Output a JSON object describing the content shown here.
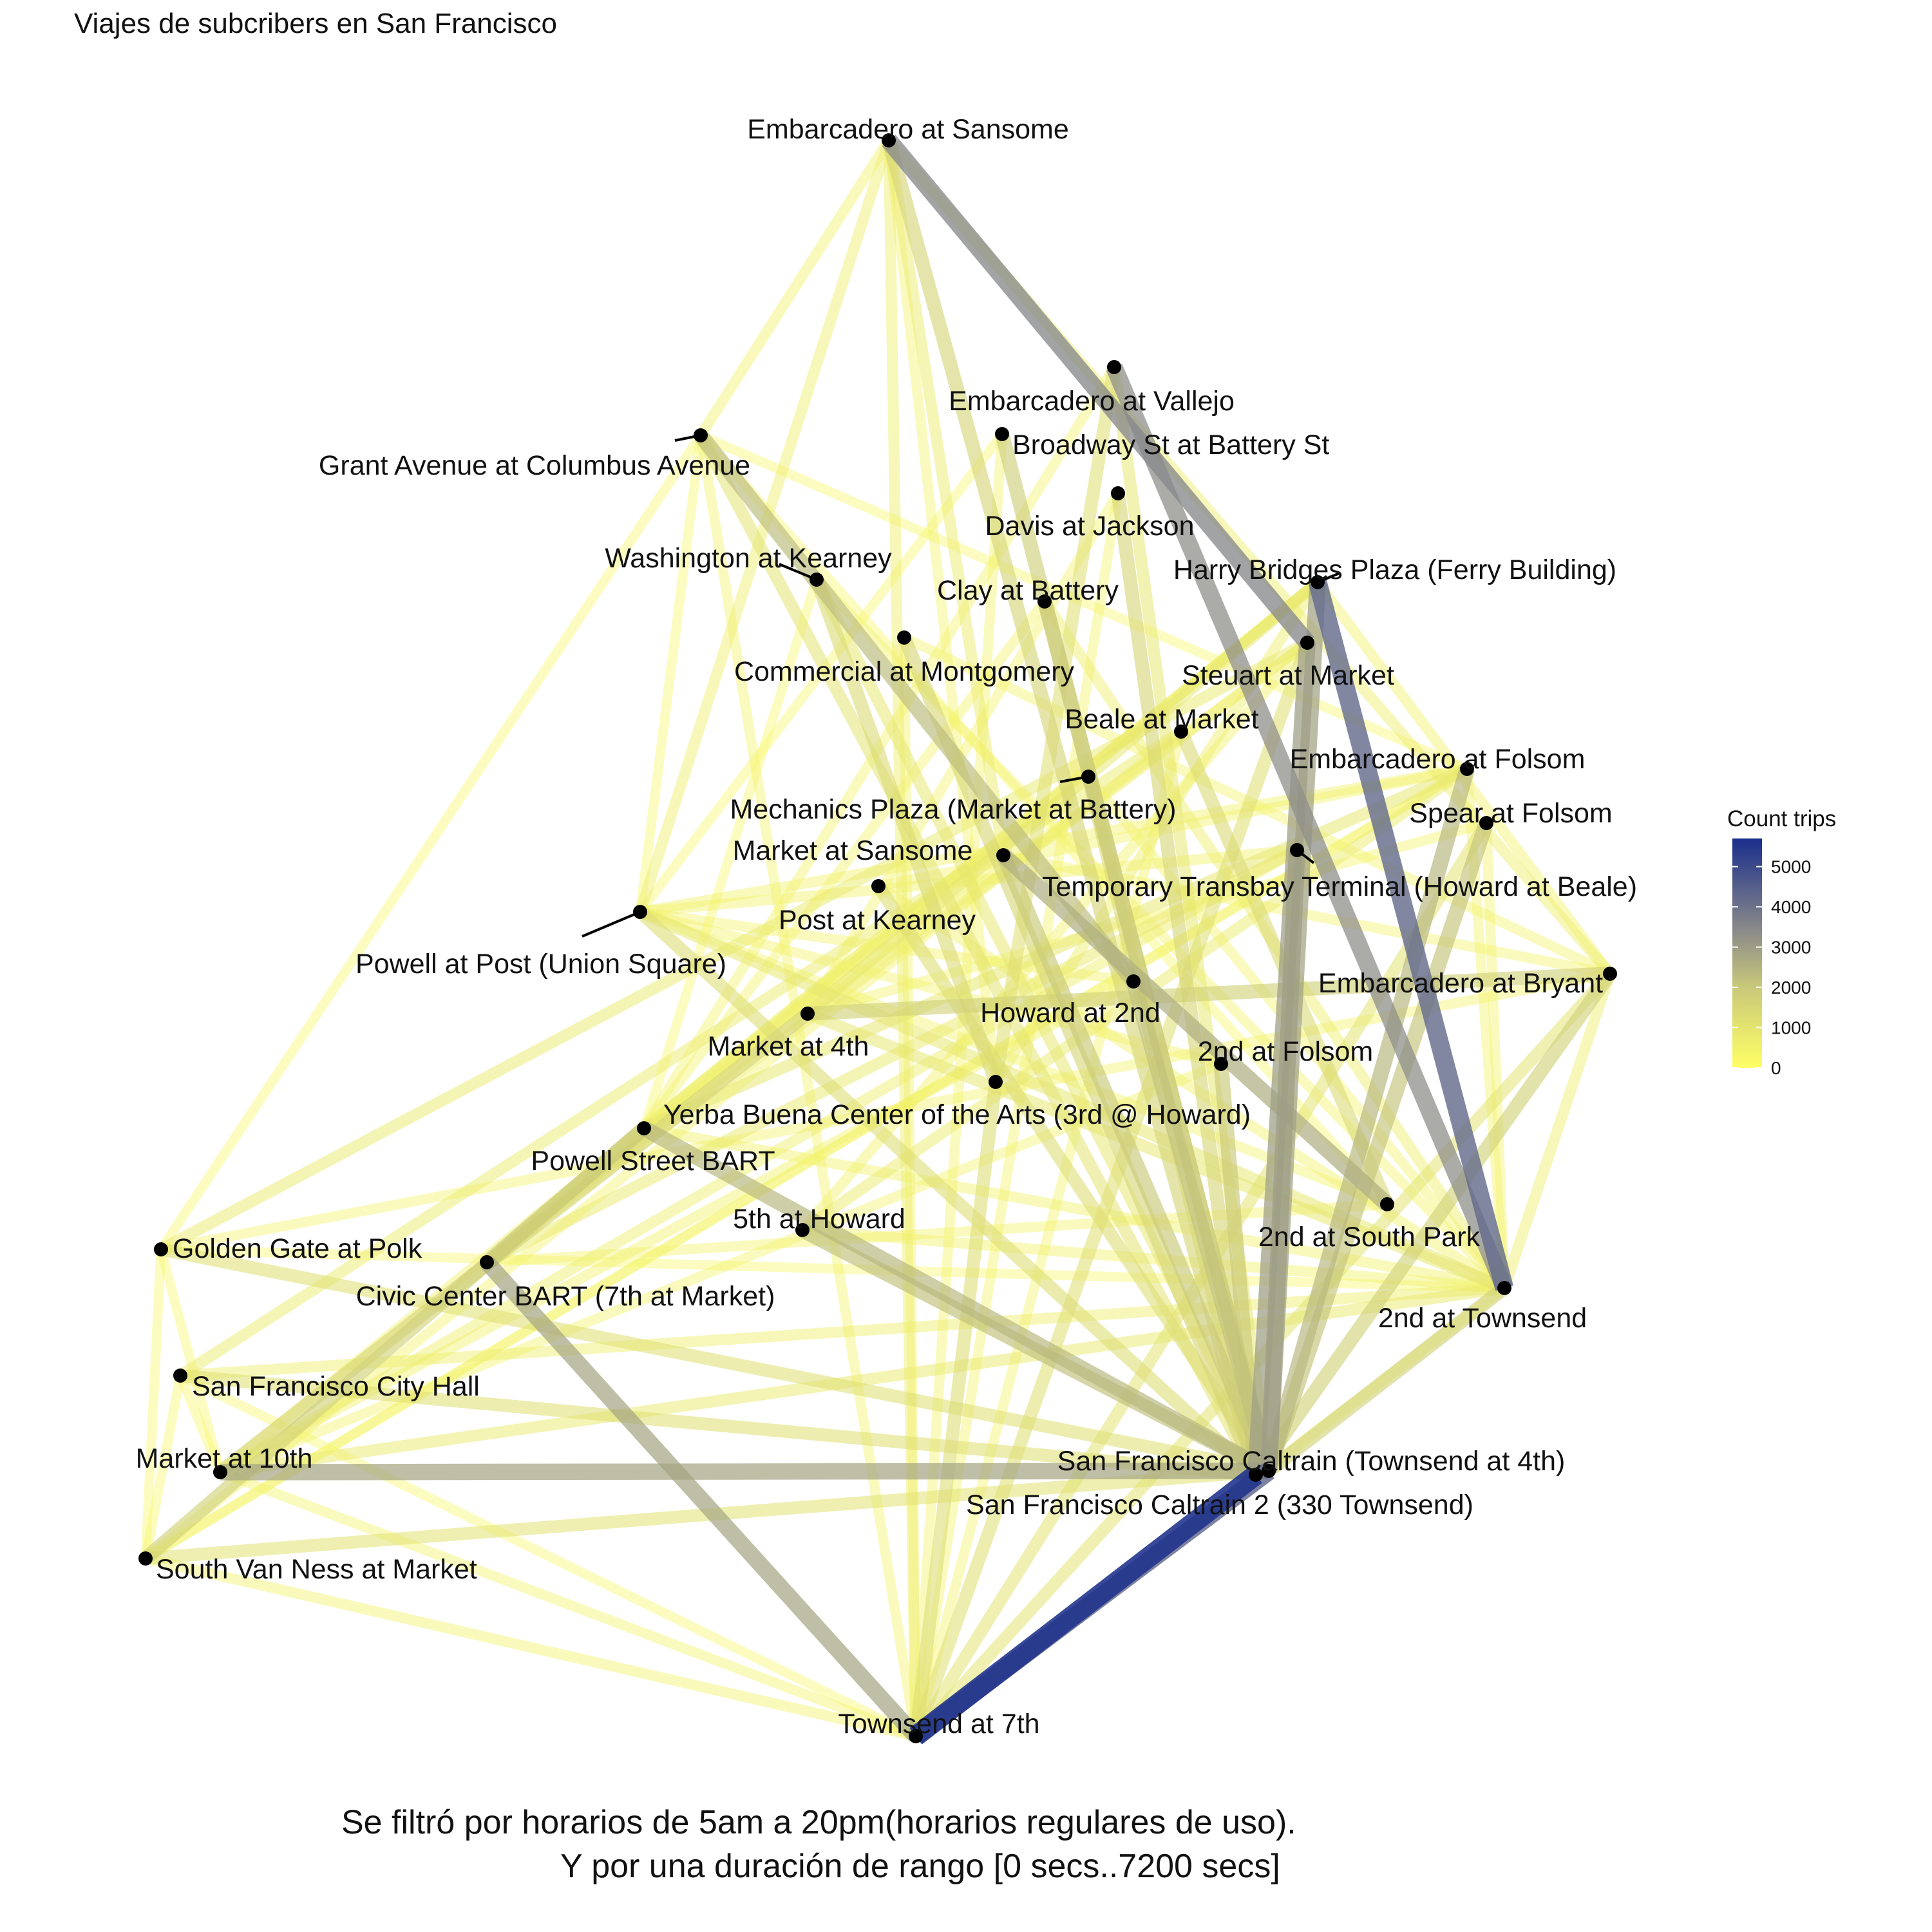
{
  "title": "Viajes de subcribers en San Francisco",
  "caption": {
    "line1": "Se filtró por horarios de 5am a 20pm(horarios regulares de uso).",
    "line2": "Y por una duración de rango [0 secs..7200 secs]"
  },
  "legend": {
    "title": "Count trips",
    "ticks": [
      "5000",
      "4000",
      "3000",
      "2000",
      "1000",
      "0"
    ],
    "tick_values": [
      5000,
      4000,
      3000,
      2000,
      1000,
      0
    ],
    "max": 5700,
    "colors": {
      "low": "#ffff66",
      "mid": "#8a8a8a",
      "high": "#1a2e8c"
    }
  },
  "nodes": [
    {
      "id": "embarcadero-sansome",
      "label": "Embarcadero at Sansome"
    },
    {
      "id": "embarcadero-vallejo",
      "label": "Embarcadero at Vallejo"
    },
    {
      "id": "broadway-battery",
      "label": "Broadway St at Battery St"
    },
    {
      "id": "grant-columbus",
      "label": "Grant Avenue at Columbus Avenue"
    },
    {
      "id": "davis-jackson",
      "label": "Davis at Jackson"
    },
    {
      "id": "washington-kearney",
      "label": "Washington at Kearney"
    },
    {
      "id": "clay-battery",
      "label": "Clay at Battery"
    },
    {
      "id": "harry-bridges",
      "label": "Harry Bridges Plaza (Ferry Building)"
    },
    {
      "id": "commercial-montgomery",
      "label": "Commercial at Montgomery"
    },
    {
      "id": "steuart-market",
      "label": "Steuart at Market"
    },
    {
      "id": "beale-market",
      "label": "Beale at Market"
    },
    {
      "id": "embarcadero-folsom",
      "label": "Embarcadero at Folsom"
    },
    {
      "id": "mechanics-plaza",
      "label": "Mechanics Plaza (Market at Battery)"
    },
    {
      "id": "spear-folsom",
      "label": "Spear at Folsom"
    },
    {
      "id": "market-sansome",
      "label": "Market at Sansome"
    },
    {
      "id": "temporary-transbay",
      "label": "Temporary Transbay Terminal (Howard at Beale)"
    },
    {
      "id": "post-kearney",
      "label": "Post at Kearney"
    },
    {
      "id": "powell-post",
      "label": "Powell at Post (Union Square)"
    },
    {
      "id": "embarcadero-bryant",
      "label": "Embarcadero at Bryant"
    },
    {
      "id": "howard-2nd",
      "label": "Howard at 2nd"
    },
    {
      "id": "market-4th",
      "label": "Market at 4th"
    },
    {
      "id": "2nd-folsom",
      "label": "2nd at Folsom"
    },
    {
      "id": "yerba-buena",
      "label": "Yerba Buena Center of the Arts (3rd @ Howard)"
    },
    {
      "id": "powell-bart",
      "label": "Powell Street BART"
    },
    {
      "id": "5th-howard",
      "label": "5th at Howard"
    },
    {
      "id": "2nd-south-park",
      "label": "2nd at South Park"
    },
    {
      "id": "golden-gate-polk",
      "label": "Golden Gate at Polk"
    },
    {
      "id": "civic-center-bart",
      "label": "Civic Center BART (7th at Market)"
    },
    {
      "id": "2nd-townsend",
      "label": "2nd at Townsend"
    },
    {
      "id": "sf-city-hall",
      "label": "San Francisco City Hall"
    },
    {
      "id": "caltrain-townsend-4th",
      "label": "San Francisco Caltrain (Townsend at 4th)"
    },
    {
      "id": "market-10th",
      "label": "Market at 10th"
    },
    {
      "id": "caltrain-2",
      "label": "San Francisco Caltrain 2 (330 Townsend)"
    },
    {
      "id": "south-van-ness",
      "label": "South Van Ness at Market"
    },
    {
      "id": "townsend-7th",
      "label": "Townsend at 7th"
    }
  ],
  "edges": [
    {
      "from": "caltrain-2",
      "to": "townsend-7th",
      "trips": 5600
    },
    {
      "from": "caltrain-townsend-4th",
      "to": "townsend-7th",
      "trips": 4300
    },
    {
      "from": "harry-bridges",
      "to": "2nd-townsend",
      "trips": 4200
    },
    {
      "from": "embarcadero-sansome",
      "to": "steuart-market",
      "trips": 3500
    },
    {
      "from": "embarcadero-vallejo",
      "to": "2nd-townsend",
      "trips": 3300
    },
    {
      "from": "temporary-transbay",
      "to": "caltrain-townsend-4th",
      "trips": 3000
    },
    {
      "from": "steuart-market",
      "to": "caltrain-2",
      "trips": 3000
    },
    {
      "from": "harry-bridges",
      "to": "caltrain-townsend-4th",
      "trips": 2900
    },
    {
      "from": "market-10th",
      "to": "caltrain-townsend-4th",
      "trips": 2800
    },
    {
      "from": "civic-center-bart",
      "to": "townsend-7th",
      "trips": 2800
    },
    {
      "from": "market-sansome",
      "to": "2nd-south-park",
      "trips": 2600
    },
    {
      "from": "embarcadero-folsom",
      "to": "caltrain-townsend-4th",
      "trips": 2400
    },
    {
      "from": "powell-bart",
      "to": "caltrain-townsend-4th",
      "trips": 2400
    },
    {
      "from": "grant-columbus",
      "to": "howard-2nd",
      "trips": 2300
    },
    {
      "from": "5th-howard",
      "to": "caltrain-townsend-4th",
      "trips": 2200
    },
    {
      "from": "howard-2nd",
      "to": "caltrain-townsend-4th",
      "trips": 2200
    },
    {
      "from": "spear-folsom",
      "to": "caltrain-townsend-4th",
      "trips": 2100
    },
    {
      "from": "2nd-folsom",
      "to": "caltrain-2",
      "trips": 2000
    },
    {
      "from": "market-sansome",
      "to": "caltrain-townsend-4th",
      "trips": 2000
    },
    {
      "from": "clay-battery",
      "to": "caltrain-townsend-4th",
      "trips": 1900
    },
    {
      "from": "civic-center-bart",
      "to": "powell-bart",
      "trips": 1900
    },
    {
      "from": "broadway-battery",
      "to": "caltrain-townsend-4th",
      "trips": 1800
    },
    {
      "from": "embarcadero-bryant",
      "to": "caltrain-2",
      "trips": 1700
    },
    {
      "from": "market-4th",
      "to": "embarcadero-bryant",
      "trips": 1700
    },
    {
      "from": "south-van-ness",
      "to": "powell-bart",
      "trips": 1700
    },
    {
      "from": "2nd-townsend",
      "to": "caltrain-townsend-4th",
      "trips": 1700
    },
    {
      "from": "market-10th",
      "to": "market-4th",
      "trips": 1600
    },
    {
      "from": "embarcadero-sansome",
      "to": "caltrain-2",
      "trips": 1600
    },
    {
      "from": "davis-jackson",
      "to": "caltrain-2",
      "trips": 1500
    },
    {
      "from": "commercial-montgomery",
      "to": "caltrain-2",
      "trips": 1500
    },
    {
      "from": "washington-kearney",
      "to": "yerba-buena",
      "trips": 1400
    },
    {
      "from": "beale-market",
      "to": "2nd-south-park",
      "trips": 1400
    },
    {
      "from": "mechanics-plaza",
      "to": "caltrain-2",
      "trips": 1400
    },
    {
      "from": "post-kearney",
      "to": "caltrain-townsend-4th",
      "trips": 1300
    },
    {
      "from": "yerba-buena",
      "to": "townsend-7th",
      "trips": 1300
    },
    {
      "from": "powell-post",
      "to": "caltrain-2",
      "trips": 1300
    },
    {
      "from": "golden-gate-polk",
      "to": "caltrain-townsend-4th",
      "trips": 1200
    },
    {
      "from": "sf-city-hall",
      "to": "caltrain-2",
      "trips": 1200
    },
    {
      "from": "embarcadero-vallejo",
      "to": "yerba-buena",
      "trips": 1200
    },
    {
      "from": "steuart-market",
      "to": "townsend-7th",
      "trips": 1200
    },
    {
      "from": "south-van-ness",
      "to": "caltrain-townsend-4th",
      "trips": 1100
    },
    {
      "from": "spear-folsom",
      "to": "townsend-7th",
      "trips": 1000
    },
    {
      "from": "embarcadero-bryant",
      "to": "townsend-7th",
      "trips": 1000
    },
    {
      "from": "grant-columbus",
      "to": "caltrain-2",
      "trips": 1000
    },
    {
      "from": "powell-post",
      "to": "2nd-townsend",
      "trips": 900
    },
    {
      "from": "market-4th",
      "to": "2nd-townsend",
      "trips": 900
    },
    {
      "from": "harry-bridges",
      "to": "market-4th",
      "trips": 900
    },
    {
      "from": "embarcadero-folsom",
      "to": "powell-bart",
      "trips": 900
    },
    {
      "from": "market-10th",
      "to": "2nd-townsend",
      "trips": 800
    },
    {
      "from": "golden-gate-polk",
      "to": "steuart-market",
      "trips": 800
    },
    {
      "from": "civic-center-bart",
      "to": "temporary-transbay",
      "trips": 800
    },
    {
      "from": "sf-city-hall",
      "to": "beale-market",
      "trips": 700
    },
    {
      "from": "5th-howard",
      "to": "embarcadero-folsom",
      "trips": 700
    },
    {
      "from": "embarcadero-sansome",
      "to": "market-sansome",
      "trips": 700
    },
    {
      "from": "embarcadero-sansome",
      "to": "powell-post",
      "trips": 600
    },
    {
      "from": "embarcadero-sansome",
      "to": "townsend-7th",
      "trips": 600
    },
    {
      "from": "embarcadero-sansome",
      "to": "embarcadero-bryant",
      "trips": 600
    },
    {
      "from": "embarcadero-sansome",
      "to": "grant-columbus",
      "trips": 500
    },
    {
      "from": "grant-columbus",
      "to": "golden-gate-polk",
      "trips": 300
    },
    {
      "from": "golden-gate-polk",
      "to": "south-van-ness",
      "trips": 300
    },
    {
      "from": "south-van-ness",
      "to": "townsend-7th",
      "trips": 500
    },
    {
      "from": "townsend-7th",
      "to": "2nd-townsend",
      "trips": 500
    },
    {
      "from": "embarcadero-bryant",
      "to": "2nd-townsend",
      "trips": 600
    },
    {
      "from": "embarcadero-bryant",
      "to": "harry-bridges",
      "trips": 500
    },
    {
      "from": "sf-city-hall",
      "to": "2nd-townsend",
      "trips": 600
    },
    {
      "from": "golden-gate-polk",
      "to": "embarcadero-bryant",
      "trips": 400
    },
    {
      "from": "market-10th",
      "to": "harry-bridges",
      "trips": 500
    },
    {
      "from": "south-van-ness",
      "to": "embarcadero-folsom",
      "trips": 400
    },
    {
      "from": "powell-post",
      "to": "embarcadero-folsom",
      "trips": 500
    },
    {
      "from": "post-kearney",
      "to": "2nd-townsend",
      "trips": 500
    },
    {
      "from": "washington-kearney",
      "to": "2nd-townsend",
      "trips": 400
    },
    {
      "from": "commercial-montgomery",
      "to": "embarcadero-bryant",
      "trips": 400
    },
    {
      "from": "clay-battery",
      "to": "2nd-townsend",
      "trips": 600
    },
    {
      "from": "broadway-battery",
      "to": "townsend-7th",
      "trips": 400
    },
    {
      "from": "davis-jackson",
      "to": "townsend-7th",
      "trips": 400
    },
    {
      "from": "grant-columbus",
      "to": "townsend-7th",
      "trips": 400
    },
    {
      "from": "powell-bart",
      "to": "2nd-townsend",
      "trips": 500
    },
    {
      "from": "5th-howard",
      "to": "2nd-townsend",
      "trips": 500
    },
    {
      "from": "yerba-buena",
      "to": "harry-bridges",
      "trips": 600
    },
    {
      "from": "2nd-folsom",
      "to": "powell-post",
      "trips": 400
    },
    {
      "from": "howard-2nd",
      "to": "market-10th",
      "trips": 500
    },
    {
      "from": "temporary-transbay",
      "to": "market-10th",
      "trips": 600
    },
    {
      "from": "beale-market",
      "to": "south-van-ness",
      "trips": 400
    },
    {
      "from": "mechanics-plaza",
      "to": "powell-bart",
      "trips": 500
    },
    {
      "from": "market-sansome",
      "to": "civic-center-bart",
      "trips": 500
    },
    {
      "from": "steuart-market",
      "to": "civic-center-bart",
      "trips": 600
    },
    {
      "from": "embarcadero-vallejo",
      "to": "caltrain-townsend-4th",
      "trips": 900
    },
    {
      "from": "2nd-south-park",
      "to": "powell-post",
      "trips": 400
    },
    {
      "from": "2nd-south-park",
      "to": "grant-columbus",
      "trips": 300
    },
    {
      "from": "embarcadero-folsom",
      "to": "2nd-townsend",
      "trips": 400
    },
    {
      "from": "spear-folsom",
      "to": "2nd-townsend",
      "trips": 400
    },
    {
      "from": "golden-gate-polk",
      "to": "2nd-townsend",
      "trips": 300
    },
    {
      "from": "sf-city-hall",
      "to": "townsend-7th",
      "trips": 300
    },
    {
      "from": "market-10th",
      "to": "townsend-7th",
      "trips": 400
    },
    {
      "from": "washington-kearney",
      "to": "caltrain-townsend-4th",
      "trips": 900
    },
    {
      "from": "post-kearney",
      "to": "embarcadero-folsom",
      "trips": 400
    },
    {
      "from": "market-4th",
      "to": "steuart-market",
      "trips": 500
    },
    {
      "from": "powell-bart",
      "to": "harry-bridges",
      "trips": 600
    },
    {
      "from": "5th-howard",
      "to": "steuart-market",
      "trips": 500
    },
    {
      "from": "civic-center-bart",
      "to": "harry-bridges",
      "trips": 500
    },
    {
      "from": "yerba-buena",
      "to": "embarcadero-sansome",
      "trips": 400
    },
    {
      "from": "howard-2nd",
      "to": "powell-post",
      "trips": 400
    },
    {
      "from": "grant-columbus",
      "to": "embarcadero-folsom",
      "trips": 300
    },
    {
      "from": "clay-battery",
      "to": "powell-bart",
      "trips": 400
    },
    {
      "from": "davis-jackson",
      "to": "market-4th",
      "trips": 400
    },
    {
      "from": "broadway-battery",
      "to": "powell-post",
      "trips": 300
    },
    {
      "from": "commercial-montgomery",
      "to": "townsend-7th",
      "trips": 400
    },
    {
      "from": "embarcadero-vallejo",
      "to": "powell-bart",
      "trips": 400
    },
    {
      "from": "temporary-transbay",
      "to": "powell-post",
      "trips": 500
    },
    {
      "from": "beale-market",
      "to": "townsend-7th",
      "trips": 400
    },
    {
      "from": "mechanics-plaza",
      "to": "2nd-townsend",
      "trips": 400
    },
    {
      "from": "market-sansome",
      "to": "embarcadero-bryant",
      "trips": 400
    },
    {
      "from": "2nd-folsom",
      "to": "market-10th",
      "trips": 400
    },
    {
      "from": "2nd-south-park",
      "to": "civic-center-bart",
      "trips": 400
    },
    {
      "from": "spear-folsom",
      "to": "market-4th",
      "trips": 400
    },
    {
      "from": "embarcadero-folsom",
      "to": "south-van-ness",
      "trips": 300
    },
    {
      "from": "golden-gate-polk",
      "to": "market-10th",
      "trips": 300
    },
    {
      "from": "sf-city-hall",
      "to": "market-10th",
      "trips": 300
    },
    {
      "from": "sf-city-hall",
      "to": "south-van-ness",
      "trips": 300
    },
    {
      "from": "grant-columbus",
      "to": "powell-post",
      "trips": 300
    },
    {
      "from": "washington-kearney",
      "to": "powell-bart",
      "trips": 300
    }
  ]
}
